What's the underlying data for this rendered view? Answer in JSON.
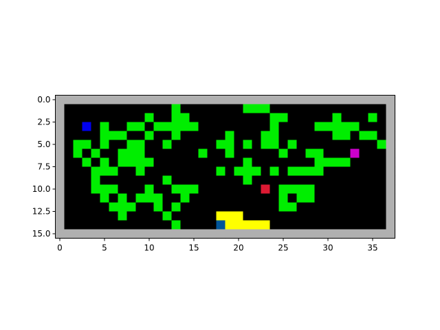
{
  "grid": {
    "rows": 16,
    "cols": 38,
    "colors": {
      "wall": "#b0b0b0",
      "floor": "#000000",
      "plant": "#00ee00",
      "sand": "#ffff00",
      "agent": "#0000ee",
      "red_item": "#dd1a33",
      "magenta_item": "#cc00cc",
      "water_item": "#005599"
    },
    "legend": {
      "W": "wall",
      ".": "floor",
      "G": "plant",
      "Y": "sand",
      "A": "agent",
      "R": "red_item",
      "M": "magenta_item",
      "B": "water_item"
    },
    "cells": [
      "WWWWWWWWWWWWWWWWWWWWWWWWWWWWWWWWWWWWWW",
      "W............G.......GGG.............W",
      "W.........G..GG.........GG.....G...G.W",
      "W..A.G..GG.GGGGG........G....GGGGG...W",
      "W....GGG..G..G.....G...GG......GG.GG.W",
      "W.GG.G..GG..G.....GG.G.GG.G.........GW",
      "W.G.G..GGG......G..G.....G..GG...M...W",
      "W..G.G.GGGG..........G.......GGGG....W",
      "W...GGG..G........G.GGG.G.GGGG.......W",
      "W...G.......G........G...............W",
      "W...GGG...G..GGG.......R.GGGG........W",
      "W....G.G.GGG..G..........G.GG........W",
      "W.....GGG..G.G...........GG..........W",
      "W......G....G.....YYY................W",
      "W............G....BYYYYY.............W",
      "WWWWWWWWWWWWWWWWWWWWWWWWWWWWWWWWWWWWWW"
    ]
  },
  "axes": {
    "x_ticks": [
      0,
      5,
      10,
      15,
      20,
      25,
      30,
      35
    ],
    "y_ticks": [
      0.0,
      2.5,
      5.0,
      7.5,
      10.0,
      12.5,
      15.0
    ],
    "x_tick_labels": [
      "0",
      "5",
      "10",
      "15",
      "20",
      "25",
      "30",
      "35"
    ],
    "y_tick_labels": [
      "0.0",
      "2.5",
      "5.0",
      "7.5",
      "10.0",
      "12.5",
      "15.0"
    ]
  }
}
